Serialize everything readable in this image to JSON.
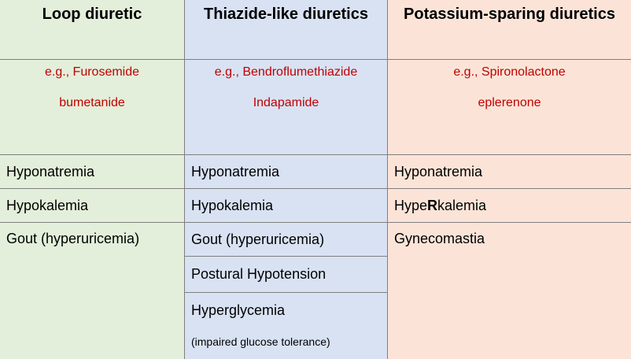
{
  "columns": [
    {
      "header": "Loop diuretic",
      "examples": [
        "e.g., Furosemide",
        "bumetanide"
      ],
      "effects": [
        "Hyponatremia",
        "Hypokalemia",
        "Gout (hyperuricemia)"
      ]
    },
    {
      "header": "Thiazide-like diuretics",
      "examples": [
        "e.g., Bendroflumethiazide",
        "Indapamide"
      ],
      "effects": [
        "Hyponatremia",
        "Hypokalemia",
        "Gout (hyperuricemia)",
        "Postural Hypotension",
        "Hyperglycemia"
      ],
      "effect_note": "(impaired glucose tolerance)"
    },
    {
      "header": "Potassium-sparing diuretics",
      "examples": [
        "e.g., Spironolactone",
        "eplerenone"
      ],
      "effects": [
        "Hyponatremia",
        "HypeRkalemia",
        "Gynecomastia"
      ],
      "hyperkalemia_parts": [
        "Hype",
        "R",
        "kalemia"
      ]
    }
  ],
  "colors": {
    "loop_bg": "#e3efda",
    "thiazide_bg": "#d9e2f3",
    "ksparing_bg": "#fbe4d7",
    "example_text": "#c00000",
    "border": "#7f7f7f"
  }
}
